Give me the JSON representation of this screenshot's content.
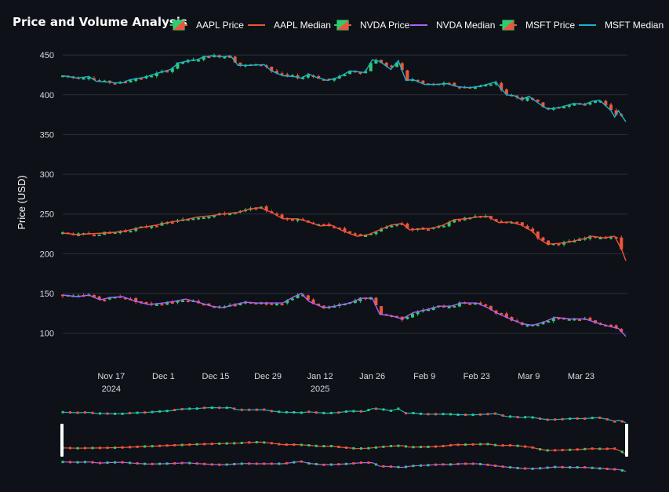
{
  "chart_data": {
    "type": "candlestick-line",
    "title": "Price and Volume Analysis",
    "ylabel": "Price (USD)",
    "ylim": [
      70,
      460
    ],
    "y_ticks": [
      100,
      150,
      200,
      250,
      300,
      350,
      400,
      450
    ],
    "x_range": [
      "2024-11-04",
      "2025-04-04"
    ],
    "x_ticks": [
      {
        "date": "2024-11-17",
        "label": "Nov 17",
        "sub": "2024"
      },
      {
        "date": "2024-12-01",
        "label": "Dec 1",
        "sub": ""
      },
      {
        "date": "2024-12-15",
        "label": "Dec 15",
        "sub": ""
      },
      {
        "date": "2024-12-29",
        "label": "Dec 29",
        "sub": ""
      },
      {
        "date": "2025-01-12",
        "label": "Jan 12",
        "sub": "2025"
      },
      {
        "date": "2025-01-26",
        "label": "Jan 26",
        "sub": ""
      },
      {
        "date": "2025-02-09",
        "label": "Feb 9",
        "sub": ""
      },
      {
        "date": "2025-02-23",
        "label": "Feb 23",
        "sub": ""
      },
      {
        "date": "2025-03-09",
        "label": "Mar 9",
        "sub": ""
      },
      {
        "date": "2025-03-23",
        "label": "Mar 23",
        "sub": ""
      }
    ],
    "legend": {
      "position": "top-right",
      "items": [
        {
          "name": "AAPL Price",
          "kind": "candle"
        },
        {
          "name": "AAPL Median",
          "kind": "line",
          "color": "#ef553b"
        },
        {
          "name": "NVDA Price",
          "kind": "candle"
        },
        {
          "name": "NVDA Median",
          "kind": "line",
          "color": "#ab63fa"
        },
        {
          "name": "MSFT Price",
          "kind": "candle"
        },
        {
          "name": "MSFT Median",
          "kind": "line",
          "color": "#19b4d3"
        }
      ]
    },
    "colors": {
      "up": "#2ecc71",
      "down": "#ef553b",
      "grid": "#2a2f3a",
      "bg": "#0e1117"
    },
    "rangeslider": true,
    "series": [
      {
        "name": "MSFT",
        "line_name": "MSFT Median",
        "color": "#19b4d3",
        "points": [
          [
            "2024-11-04",
            424
          ],
          [
            "2024-11-08",
            421
          ],
          [
            "2024-11-11",
            423
          ],
          [
            "2024-11-13",
            417
          ],
          [
            "2024-11-16",
            416
          ],
          [
            "2024-11-18",
            415
          ],
          [
            "2024-11-20",
            415
          ],
          [
            "2024-11-22",
            419
          ],
          [
            "2024-11-26",
            422
          ],
          [
            "2024-11-30",
            428
          ],
          [
            "2024-12-03",
            432
          ],
          [
            "2024-12-05",
            440
          ],
          [
            "2024-12-08",
            443
          ],
          [
            "2024-12-10",
            444
          ],
          [
            "2024-12-12",
            448
          ],
          [
            "2024-12-14",
            449
          ],
          [
            "2024-12-17",
            448
          ],
          [
            "2024-12-19",
            449
          ],
          [
            "2024-12-21",
            437
          ],
          [
            "2024-12-24",
            437
          ],
          [
            "2024-12-28",
            438
          ],
          [
            "2024-12-30",
            430
          ],
          [
            "2025-01-02",
            424
          ],
          [
            "2025-01-05",
            423
          ],
          [
            "2025-01-07",
            421
          ],
          [
            "2025-01-09",
            426
          ],
          [
            "2025-01-11",
            422
          ],
          [
            "2025-01-14",
            418
          ],
          [
            "2025-01-17",
            422
          ],
          [
            "2025-01-20",
            430
          ],
          [
            "2025-01-24",
            428
          ],
          [
            "2025-01-26",
            444
          ],
          [
            "2025-01-28",
            442
          ],
          [
            "2025-01-31",
            432
          ],
          [
            "2025-02-02",
            443
          ],
          [
            "2025-02-04",
            418
          ],
          [
            "2025-02-06",
            419
          ],
          [
            "2025-02-09",
            413
          ],
          [
            "2025-02-12",
            413
          ],
          [
            "2025-02-15",
            414
          ],
          [
            "2025-02-18",
            410
          ],
          [
            "2025-02-21",
            409
          ],
          [
            "2025-02-23",
            410
          ],
          [
            "2025-02-25",
            412
          ],
          [
            "2025-02-28",
            416
          ],
          [
            "2025-03-03",
            400
          ],
          [
            "2025-03-05",
            399
          ],
          [
            "2025-03-07",
            394
          ],
          [
            "2025-03-09",
            398
          ],
          [
            "2025-03-12",
            388
          ],
          [
            "2025-03-14",
            382
          ],
          [
            "2025-03-16",
            383
          ],
          [
            "2025-03-18",
            385
          ],
          [
            "2025-03-21",
            389
          ],
          [
            "2025-03-24",
            388
          ],
          [
            "2025-03-26",
            392
          ],
          [
            "2025-03-28",
            393
          ],
          [
            "2025-03-31",
            380
          ],
          [
            "2025-04-01",
            372
          ],
          [
            "2025-04-02",
            380
          ],
          [
            "2025-04-03",
            373
          ],
          [
            "2025-04-04",
            366
          ]
        ]
      },
      {
        "name": "AAPL",
        "line_name": "AAPL Median",
        "color": "#ef553b",
        "points": [
          [
            "2024-11-04",
            226
          ],
          [
            "2024-11-08",
            224
          ],
          [
            "2024-11-11",
            225
          ],
          [
            "2024-11-15",
            226
          ],
          [
            "2024-11-18",
            227
          ],
          [
            "2024-11-21",
            229
          ],
          [
            "2024-11-25",
            233
          ],
          [
            "2024-11-29",
            236
          ],
          [
            "2024-12-03",
            240
          ],
          [
            "2024-12-07",
            243
          ],
          [
            "2024-12-10",
            246
          ],
          [
            "2024-12-14",
            248
          ],
          [
            "2024-12-17",
            250
          ],
          [
            "2024-12-21",
            252
          ],
          [
            "2024-12-24",
            256
          ],
          [
            "2024-12-27",
            258
          ],
          [
            "2024-12-30",
            252
          ],
          [
            "2025-01-02",
            244
          ],
          [
            "2025-01-06",
            244
          ],
          [
            "2025-01-09",
            240
          ],
          [
            "2025-01-12",
            235
          ],
          [
            "2025-01-15",
            236
          ],
          [
            "2025-01-18",
            229
          ],
          [
            "2025-01-22",
            222
          ],
          [
            "2025-01-25",
            224
          ],
          [
            "2025-01-28",
            230
          ],
          [
            "2025-01-31",
            236
          ],
          [
            "2025-02-03",
            238
          ],
          [
            "2025-02-05",
            230
          ],
          [
            "2025-02-08",
            231
          ],
          [
            "2025-02-11",
            232
          ],
          [
            "2025-02-14",
            236
          ],
          [
            "2025-02-17",
            243
          ],
          [
            "2025-02-20",
            244
          ],
          [
            "2025-02-23",
            246
          ],
          [
            "2025-02-26",
            247
          ],
          [
            "2025-03-01",
            239
          ],
          [
            "2025-03-04",
            240
          ],
          [
            "2025-03-07",
            236
          ],
          [
            "2025-03-10",
            228
          ],
          [
            "2025-03-12",
            218
          ],
          [
            "2025-03-14",
            212
          ],
          [
            "2025-03-17",
            213
          ],
          [
            "2025-03-20",
            215
          ],
          [
            "2025-03-23",
            218
          ],
          [
            "2025-03-26",
            222
          ],
          [
            "2025-03-29",
            220
          ],
          [
            "2025-04-01",
            222
          ],
          [
            "2025-04-03",
            204
          ],
          [
            "2025-04-04",
            191
          ]
        ]
      },
      {
        "name": "NVDA",
        "line_name": "NVDA Median",
        "color": "#ab63fa",
        "points": [
          [
            "2024-11-04",
            148
          ],
          [
            "2024-11-08",
            146
          ],
          [
            "2024-11-11",
            148
          ],
          [
            "2024-11-14",
            142
          ],
          [
            "2024-11-17",
            145
          ],
          [
            "2024-11-20",
            146
          ],
          [
            "2024-11-23",
            141
          ],
          [
            "2024-11-27",
            136
          ],
          [
            "2024-12-01",
            138
          ],
          [
            "2024-12-04",
            140
          ],
          [
            "2024-12-07",
            143
          ],
          [
            "2024-12-11",
            138
          ],
          [
            "2024-12-14",
            134
          ],
          [
            "2024-12-17",
            132
          ],
          [
            "2024-12-20",
            136
          ],
          [
            "2024-12-23",
            139
          ],
          [
            "2024-12-26",
            138
          ],
          [
            "2024-12-30",
            138
          ],
          [
            "2025-01-02",
            138
          ],
          [
            "2025-01-05",
            146
          ],
          [
            "2025-01-07",
            150
          ],
          [
            "2025-01-09",
            140
          ],
          [
            "2025-01-13",
            132
          ],
          [
            "2025-01-16",
            134
          ],
          [
            "2025-01-20",
            138
          ],
          [
            "2025-01-23",
            144
          ],
          [
            "2025-01-26",
            144
          ],
          [
            "2025-01-28",
            124
          ],
          [
            "2025-01-31",
            122
          ],
          [
            "2025-02-03",
            118
          ],
          [
            "2025-02-06",
            126
          ],
          [
            "2025-02-10",
            130
          ],
          [
            "2025-02-13",
            134
          ],
          [
            "2025-02-16",
            134
          ],
          [
            "2025-02-19",
            138
          ],
          [
            "2025-02-23",
            138
          ],
          [
            "2025-02-26",
            132
          ],
          [
            "2025-03-01",
            124
          ],
          [
            "2025-03-04",
            118
          ],
          [
            "2025-03-07",
            112
          ],
          [
            "2025-03-10",
            110
          ],
          [
            "2025-03-13",
            114
          ],
          [
            "2025-03-16",
            120
          ],
          [
            "2025-03-20",
            118
          ],
          [
            "2025-03-24",
            118
          ],
          [
            "2025-03-28",
            112
          ],
          [
            "2025-03-31",
            108
          ],
          [
            "2025-04-02",
            106
          ],
          [
            "2025-04-04",
            96
          ]
        ]
      }
    ]
  }
}
